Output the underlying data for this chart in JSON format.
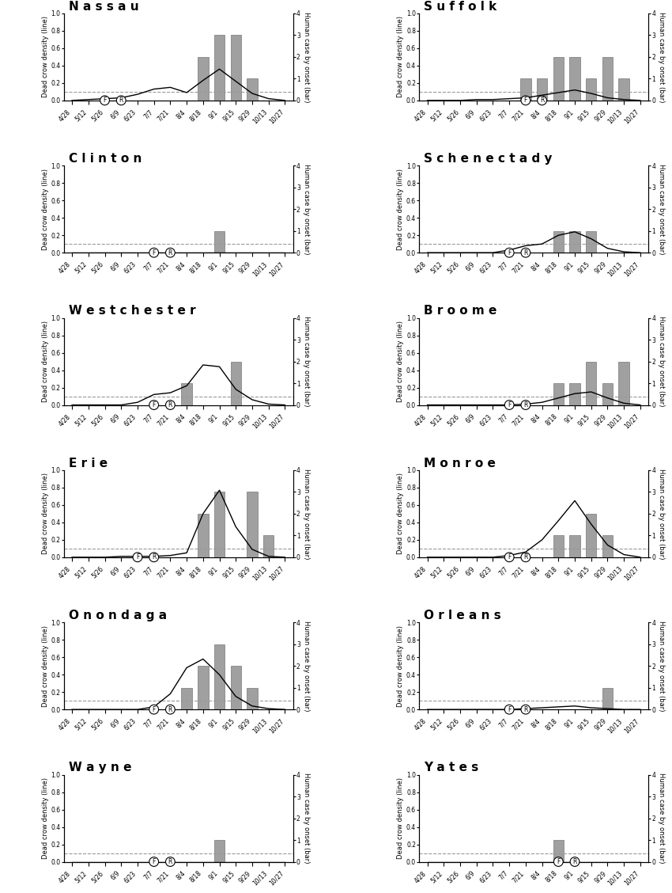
{
  "counties": [
    "Nassau",
    "Suffolk",
    "Clinton",
    "Schenectady",
    "Westchester",
    "Broome",
    "Erie",
    "Monroe",
    "Onondaga",
    "Orleans",
    "Wayne",
    "Yates"
  ],
  "x_labels": [
    "4/28",
    "5/12",
    "5/26",
    "6/9",
    "6/23",
    "7/7",
    "7/21",
    "8/4",
    "8/18",
    "9/1",
    "9/15",
    "9/29",
    "10/13",
    "10/27"
  ],
  "n_weeks": 14,
  "dcd_data": {
    "Nassau": [
      0.0,
      0.01,
      0.02,
      0.03,
      0.07,
      0.13,
      0.15,
      0.09,
      0.23,
      0.36,
      0.22,
      0.08,
      0.02,
      0.0
    ],
    "Suffolk": [
      0.0,
      0.0,
      0.0,
      0.01,
      0.01,
      0.02,
      0.03,
      0.06,
      0.09,
      0.12,
      0.08,
      0.03,
      0.01,
      0.0
    ],
    "Clinton": [
      0.0,
      0.0,
      0.0,
      0.0,
      0.0,
      0.0,
      0.0,
      0.0,
      0.0,
      0.0,
      0.0,
      0.0,
      0.0,
      0.0
    ],
    "Schenectady": [
      0.0,
      0.0,
      0.0,
      0.0,
      0.0,
      0.03,
      0.08,
      0.1,
      0.2,
      0.24,
      0.16,
      0.05,
      0.01,
      0.0
    ],
    "Westchester": [
      0.0,
      0.0,
      0.0,
      0.0,
      0.03,
      0.12,
      0.14,
      0.22,
      0.46,
      0.44,
      0.18,
      0.06,
      0.01,
      0.0
    ],
    "Broome": [
      0.0,
      0.0,
      0.0,
      0.0,
      0.0,
      0.0,
      0.01,
      0.03,
      0.08,
      0.13,
      0.15,
      0.08,
      0.02,
      0.0
    ],
    "Erie": [
      0.0,
      0.0,
      0.0,
      0.01,
      0.01,
      0.01,
      0.02,
      0.05,
      0.5,
      0.77,
      0.35,
      0.09,
      0.01,
      0.0
    ],
    "Monroe": [
      0.0,
      0.0,
      0.0,
      0.0,
      0.0,
      0.02,
      0.06,
      0.2,
      0.42,
      0.65,
      0.38,
      0.14,
      0.03,
      0.0
    ],
    "Onondaga": [
      0.0,
      0.0,
      0.0,
      0.0,
      0.0,
      0.03,
      0.18,
      0.48,
      0.58,
      0.4,
      0.15,
      0.04,
      0.01,
      0.0
    ],
    "Orleans": [
      0.0,
      0.0,
      0.0,
      0.0,
      0.0,
      0.0,
      0.01,
      0.02,
      0.03,
      0.04,
      0.02,
      0.01,
      0.0,
      0.0
    ],
    "Wayne": [
      0.0,
      0.0,
      0.0,
      0.0,
      0.0,
      0.0,
      0.0,
      0.0,
      0.0,
      0.0,
      0.0,
      0.0,
      0.0,
      0.0
    ],
    "Yates": [
      0.0,
      0.0,
      0.0,
      0.0,
      0.0,
      0.0,
      0.0,
      0.0,
      0.0,
      0.0,
      0.0,
      0.0,
      0.0,
      0.0
    ]
  },
  "wnv_cases": {
    "Nassau": [
      0,
      0,
      0,
      0,
      0,
      0,
      0,
      0,
      2,
      3,
      3,
      1,
      0,
      0
    ],
    "Suffolk": [
      0,
      0,
      0,
      0,
      0,
      0,
      1,
      1,
      2,
      2,
      1,
      2,
      1,
      0
    ],
    "Clinton": [
      0,
      0,
      0,
      0,
      0,
      0,
      0,
      0,
      0,
      1,
      0,
      0,
      0,
      0
    ],
    "Schenectady": [
      0,
      0,
      0,
      0,
      0,
      0,
      0,
      0,
      1,
      1,
      1,
      0,
      0,
      0
    ],
    "Westchester": [
      0,
      0,
      0,
      0,
      0,
      0,
      0,
      1,
      0,
      0,
      2,
      0,
      0,
      0
    ],
    "Broome": [
      0,
      0,
      0,
      0,
      0,
      0,
      0,
      0,
      1,
      1,
      2,
      1,
      2,
      0
    ],
    "Erie": [
      0,
      0,
      0,
      0,
      0,
      0,
      0,
      0,
      2,
      3,
      0,
      3,
      1,
      0
    ],
    "Monroe": [
      0,
      0,
      0,
      0,
      0,
      0,
      0,
      0,
      1,
      1,
      2,
      1,
      0,
      0
    ],
    "Onondaga": [
      0,
      0,
      0,
      0,
      0,
      0,
      0,
      1,
      2,
      3,
      2,
      1,
      0,
      0
    ],
    "Orleans": [
      0,
      0,
      0,
      0,
      0,
      0,
      0,
      0,
      0,
      0,
      0,
      1,
      0,
      0
    ],
    "Wayne": [
      0,
      0,
      0,
      0,
      0,
      0,
      0,
      0,
      0,
      1,
      0,
      0,
      0,
      0
    ],
    "Yates": [
      0,
      0,
      0,
      0,
      0,
      0,
      0,
      0,
      1,
      0,
      0,
      0,
      0,
      0
    ]
  },
  "F_marker_idx": {
    "Nassau": 2,
    "Suffolk": 6,
    "Clinton": 5,
    "Schenectady": 5,
    "Westchester": 5,
    "Broome": 5,
    "Erie": 4,
    "Monroe": 5,
    "Onondaga": 5,
    "Orleans": 5,
    "Wayne": 5,
    "Yates": 8
  },
  "R_marker_idx": {
    "Nassau": 3,
    "Suffolk": 7,
    "Clinton": 6,
    "Schenectady": 6,
    "Westchester": 6,
    "Broome": 6,
    "Erie": 5,
    "Monroe": 6,
    "Onondaga": 6,
    "Orleans": 6,
    "Wayne": 6,
    "Yates": 9
  },
  "dcd_threshold": 0.1,
  "bar_color": "#a0a0a0",
  "bar_edge_color": "#606060",
  "line_color": "#000000",
  "dashed_color": "#999999",
  "title_fontsize": 11,
  "label_fontsize": 6,
  "tick_fontsize": 5.5
}
